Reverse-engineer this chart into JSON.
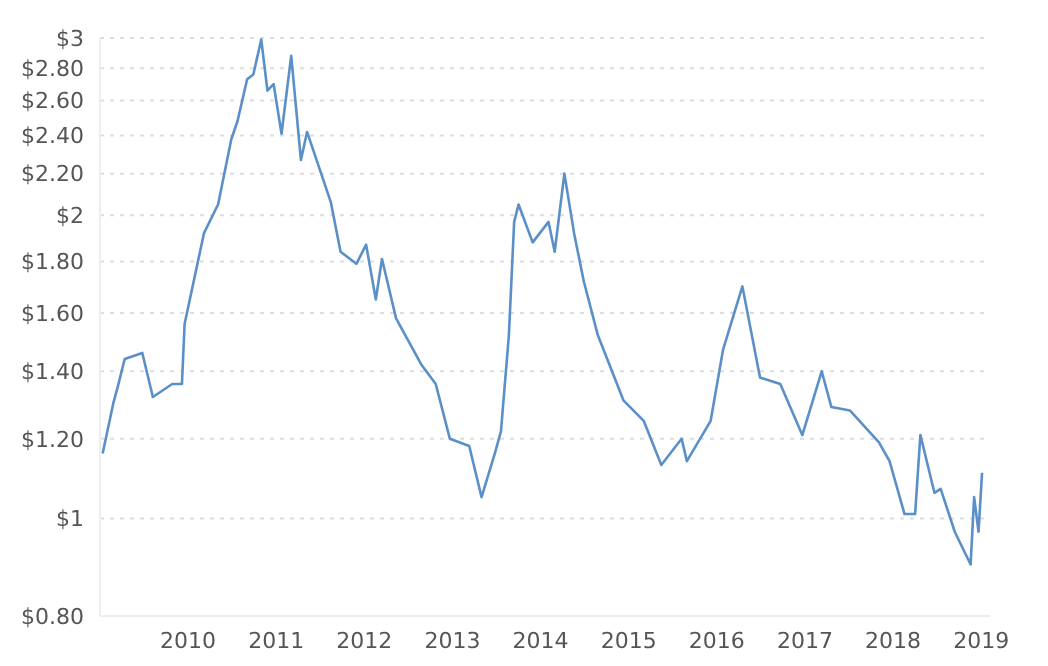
{
  "chart_data": {
    "type": "line",
    "log": "y",
    "grid": "y",
    "marker": "none",
    "line_style": "solid",
    "legend": false,
    "x": [
      2009.03,
      2009.15,
      2009.21,
      2009.28,
      2009.48,
      2009.6,
      2009.82,
      2009.93,
      2009.96,
      2010.18,
      2010.34,
      2010.49,
      2010.56,
      2010.67,
      2010.74,
      2010.83,
      2010.9,
      2010.97,
      2011.06,
      2011.17,
      2011.28,
      2011.35,
      2011.51,
      2011.62,
      2011.73,
      2011.91,
      2012.02,
      2012.13,
      2012.2,
      2012.36,
      2012.65,
      2012.81,
      2012.97,
      2013.19,
      2013.33,
      2013.48,
      2013.55,
      2013.64,
      2013.7,
      2013.75,
      2013.91,
      2014.09,
      2014.16,
      2014.27,
      2014.38,
      2014.49,
      2014.65,
      2014.94,
      2015.17,
      2015.37,
      2015.6,
      2015.66,
      2015.93,
      2016.07,
      2016.29,
      2016.49,
      2016.72,
      2016.97,
      2017.19,
      2017.3,
      2017.51,
      2017.84,
      2017.96,
      2018.13,
      2018.25,
      2018.31,
      2018.47,
      2018.54,
      2018.7,
      2018.88,
      2018.92,
      2018.97,
      2019.01
    ],
    "series": [
      {
        "color": "#5b8fc7",
        "values": [
          1.16,
          1.3,
          1.36,
          1.44,
          1.46,
          1.32,
          1.36,
          1.36,
          1.56,
          1.92,
          2.05,
          2.38,
          2.48,
          2.73,
          2.76,
          2.99,
          2.66,
          2.7,
          2.41,
          2.88,
          2.27,
          2.42,
          2.2,
          2.06,
          1.84,
          1.79,
          1.87,
          1.65,
          1.81,
          1.58,
          1.42,
          1.36,
          1.2,
          1.18,
          1.05,
          1.16,
          1.22,
          1.52,
          1.97,
          2.05,
          1.88,
          1.97,
          1.84,
          2.2,
          1.92,
          1.72,
          1.52,
          1.31,
          1.25,
          1.13,
          1.2,
          1.14,
          1.25,
          1.47,
          1.7,
          1.38,
          1.36,
          1.21,
          1.4,
          1.29,
          1.28,
          1.19,
          1.14,
          1.01,
          1.01,
          1.21,
          1.06,
          1.07,
          0.97,
          0.9,
          1.05,
          0.97,
          1.11
        ]
      }
    ],
    "xlim": [
      2009,
      2019.1
    ],
    "xticks": [
      2010,
      2011,
      2012,
      2013,
      2014,
      2015,
      2016,
      2017,
      2018,
      2019
    ],
    "ylim": [
      0.8,
      3
    ],
    "yticks": [
      {
        "value": 0.8,
        "label": "$0.80"
      },
      {
        "value": 1,
        "label": "$1"
      },
      {
        "value": 1.2,
        "label": "$1.20"
      },
      {
        "value": 1.4,
        "label": "$1.40"
      },
      {
        "value": 1.6,
        "label": "$1.60"
      },
      {
        "value": 1.8,
        "label": "$1.80"
      },
      {
        "value": 2,
        "label": "$2"
      },
      {
        "value": 2.2,
        "label": "$2.20"
      },
      {
        "value": 2.4,
        "label": "$2.40"
      },
      {
        "value": 2.6,
        "label": "$2.60"
      },
      {
        "value": 2.8,
        "label": "$2.80"
      },
      {
        "value": 3,
        "label": "$3"
      }
    ]
  }
}
